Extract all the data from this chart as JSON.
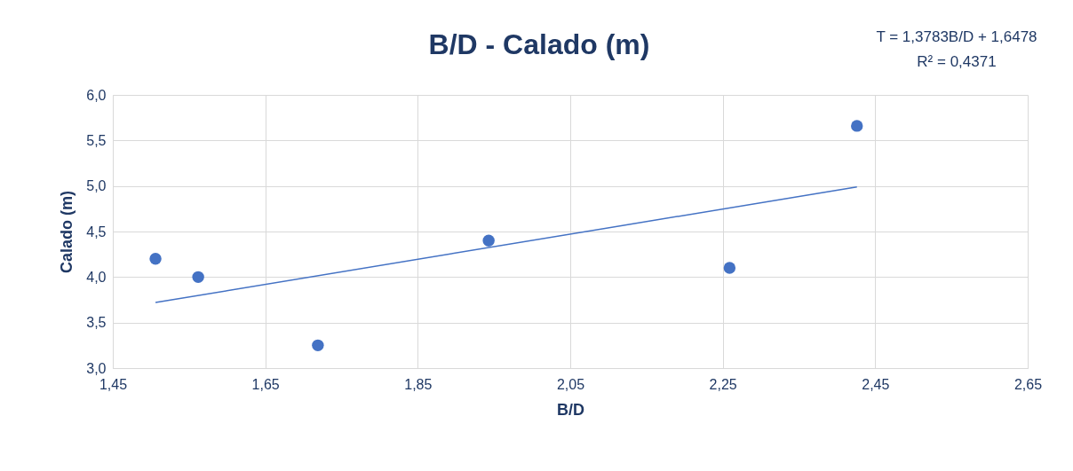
{
  "chart_data": {
    "type": "scatter",
    "title": "B/D - Calado (m)",
    "xlabel": "B/D",
    "ylabel": "Calado (m)",
    "annotations": [
      "T = 1,3783B/D + 1,6478",
      "R² = 0,4371"
    ],
    "xlim": [
      1.45,
      2.65
    ],
    "ylim": [
      3.0,
      6.0
    ],
    "xticks": [
      {
        "value": 1.45,
        "label": "1,45"
      },
      {
        "value": 1.65,
        "label": "1,65"
      },
      {
        "value": 1.85,
        "label": "1,85"
      },
      {
        "value": 2.05,
        "label": "2,05"
      },
      {
        "value": 2.25,
        "label": "2,25"
      },
      {
        "value": 2.45,
        "label": "2,45"
      },
      {
        "value": 2.65,
        "label": "2,65"
      }
    ],
    "yticks": [
      {
        "value": 3.0,
        "label": "3,0"
      },
      {
        "value": 3.5,
        "label": "3,5"
      },
      {
        "value": 4.0,
        "label": "4,0"
      },
      {
        "value": 4.5,
        "label": "4,5"
      },
      {
        "value": 5.0,
        "label": "5,0"
      },
      {
        "value": 5.5,
        "label": "5,5"
      },
      {
        "value": 6.0,
        "label": "6,0"
      }
    ],
    "grid": true,
    "marker": "circle",
    "series": [
      {
        "color": "#4472c4",
        "x": [
          1.506,
          1.562,
          1.719,
          1.943,
          2.259,
          2.426
        ],
        "values": [
          4.2,
          4.0,
          3.25,
          4.4,
          4.1,
          5.66
        ]
      },
      {
        "type": "line",
        "color": "#4472c4",
        "marker": "none",
        "line_style": "solid",
        "x": [
          1.506,
          2.426
        ],
        "values": [
          3.72,
          4.99
        ]
      }
    ]
  }
}
